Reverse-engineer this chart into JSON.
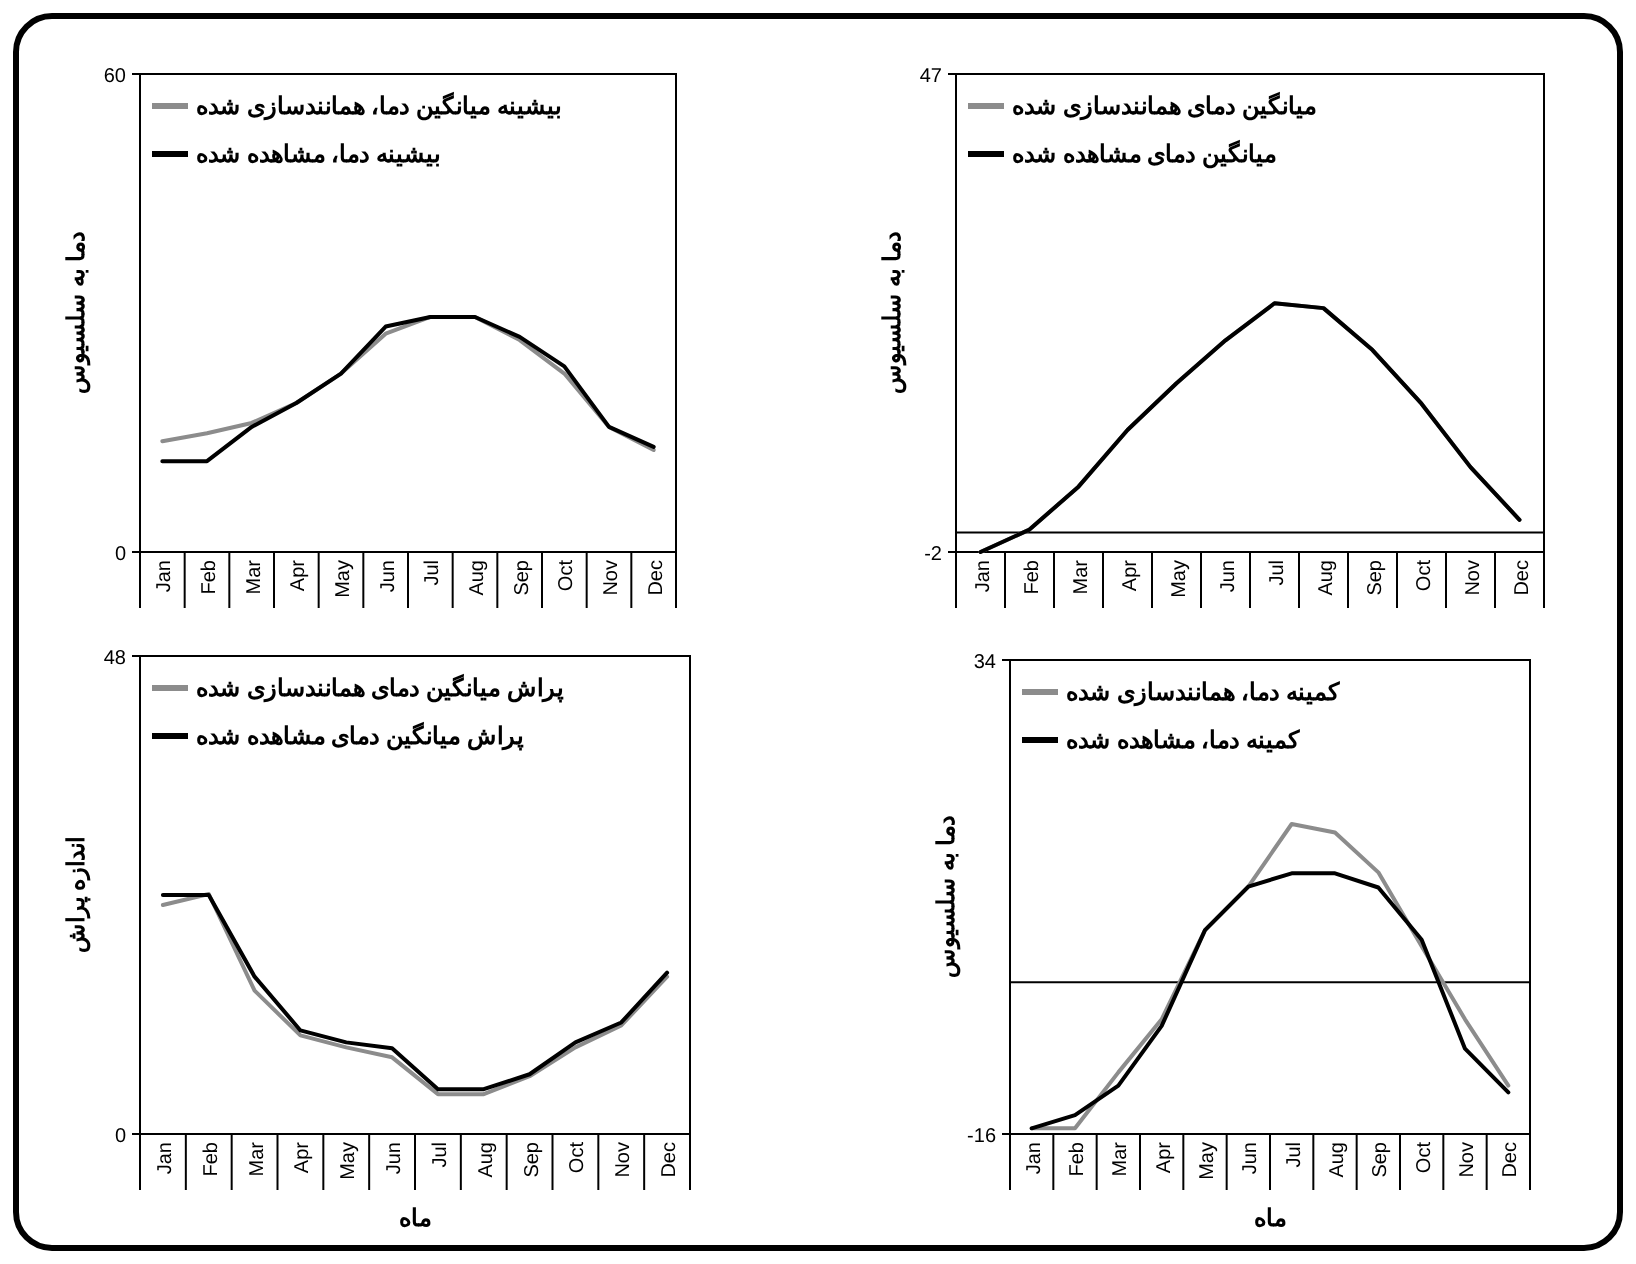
{
  "chart_data": [
    {
      "type": "line",
      "categories": [
        "Jan",
        "Feb",
        "Mar",
        "Apr",
        "May",
        "Jun",
        "Jul",
        "Aug",
        "Sep",
        "Oct",
        "Nov",
        "Dec"
      ],
      "ylabel": "دما به سلسیوس",
      "ylim": [
        0,
        60
      ],
      "yticks": [
        0,
        60
      ],
      "legend": "top left",
      "grid": false,
      "series": [
        {
          "name": "بیشینه میانگین دما، همانندسازی شده",
          "color": "#8c8c8c",
          "values": [
            13.9,
            14.9,
            16.2,
            18.7,
            22.4,
            27.4,
            29.5,
            29.5,
            26.6,
            22.4,
            15.7,
            12.8
          ]
        },
        {
          "name": "بیشینه دما، مشاهده شده",
          "color": "#000000",
          "values": [
            11.4,
            11.4,
            15.7,
            18.7,
            22.4,
            28.3,
            29.5,
            29.5,
            27,
            23.3,
            15.7,
            13.2
          ]
        }
      ]
    },
    {
      "type": "line",
      "categories": [
        "Jan",
        "Feb",
        "Mar",
        "Apr",
        "May",
        "Jun",
        "Jul",
        "Aug",
        "Sep",
        "Oct",
        "Nov",
        "Dec"
      ],
      "ylabel": "دما به سلسیوس",
      "ylim": [
        -2,
        47
      ],
      "yticks": [
        -2,
        47
      ],
      "legend": "top left",
      "grid": false,
      "ref_lines": [
        {
          "axis": "y",
          "value": 0,
          "color": "#000000"
        }
      ],
      "series": [
        {
          "name": "میانگین دمای همانندسازی شده",
          "color": "#8c8c8c",
          "values": [
            -2,
            0.3,
            4.7,
            10.5,
            15.3,
            19.7,
            23.5,
            23,
            18.7,
            13.2,
            6.7,
            1.3
          ]
        },
        {
          "name": "میانگین دمای مشاهده شده",
          "color": "#000000",
          "values": [
            -2,
            0.3,
            4.7,
            10.5,
            15.3,
            19.7,
            23.5,
            23,
            18.7,
            13.2,
            6.7,
            1.3
          ]
        }
      ]
    },
    {
      "type": "line",
      "categories": [
        "Jan",
        "Feb",
        "Mar",
        "Apr",
        "May",
        "Jun",
        "Jul",
        "Aug",
        "Sep",
        "Oct",
        "Nov",
        "Dec"
      ],
      "xlabel": "ماه",
      "ylabel": "اندازه پراش",
      "ylim": [
        0,
        48
      ],
      "yticks": [
        0,
        48
      ],
      "legend": "top left",
      "grid": false,
      "series": [
        {
          "name": "پراش میانگین دمای همانندسازی شده",
          "color": "#8c8c8c",
          "values": [
            23,
            24.1,
            14.4,
            9.9,
            8.7,
            7.7,
            4,
            4,
            5.8,
            8.7,
            10.9,
            15.8
          ]
        },
        {
          "name": "پراش میانگین دمای مشاهده شده",
          "color": "#000000",
          "values": [
            24,
            24,
            15.8,
            10.4,
            9.2,
            8.6,
            4.5,
            4.5,
            6,
            9.2,
            11.2,
            16.2
          ]
        }
      ]
    },
    {
      "type": "line",
      "categories": [
        "Jan",
        "Feb",
        "Mar",
        "Apr",
        "May",
        "Jun",
        "Jul",
        "Aug",
        "Sep",
        "Oct",
        "Nov",
        "Dec"
      ],
      "xlabel": "ماه",
      "ylabel": "دما به سلسیوس",
      "ylim": [
        -16,
        34
      ],
      "yticks": [
        -16,
        34
      ],
      "legend": "top left",
      "grid": false,
      "ref_lines": [
        {
          "axis": "y",
          "value": 0,
          "color": "#000000"
        }
      ],
      "series": [
        {
          "name": "کمینه دما، همانندسازی شده",
          "color": "#8c8c8c",
          "values": [
            -15.4,
            -15.4,
            -9.5,
            -3.9,
            5.5,
            10.1,
            16.7,
            15.8,
            11.6,
            3.8,
            -3.9,
            -10.9
          ]
        },
        {
          "name": "کمینه دما، مشاهده شده",
          "color": "#000000",
          "values": [
            -15.4,
            -14,
            -10.9,
            -4.6,
            5.5,
            10.1,
            11.5,
            11.5,
            10,
            4.5,
            -7,
            -11.6
          ]
        }
      ]
    }
  ]
}
